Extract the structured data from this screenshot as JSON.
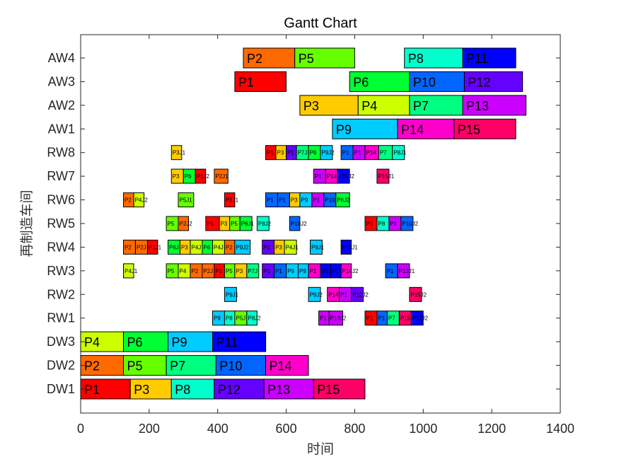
{
  "chart_data": {
    "type": "gantt",
    "title": "Gantt Chart",
    "xlabel": "时间",
    "ylabel": "再制造车间",
    "xlim": [
      0,
      1400
    ],
    "xticks": [
      0,
      200,
      400,
      600,
      800,
      1000,
      1200,
      1400
    ],
    "rows": [
      "DW1",
      "DW2",
      "DW3",
      "RW1",
      "RW2",
      "RW3",
      "RW4",
      "RW5",
      "RW6",
      "RW7",
      "RW8",
      "AW1",
      "AW2",
      "AW3",
      "AW4"
    ],
    "colors": {
      "P1": "#ff0000",
      "P2": "#ff6a00",
      "P3": "#ffcc00",
      "P4": "#ccff00",
      "P5": "#66ff00",
      "P6": "#00ff33",
      "P7": "#00ff80",
      "P8": "#00ffcc",
      "P9": "#00ccff",
      "P10": "#0066ff",
      "P11": "#0000ff",
      "P12": "#6600ff",
      "P13": "#cc00ff",
      "P14": "#ff00cc",
      "P15": "#ff0066"
    },
    "tasks": [
      {
        "row": "AW4",
        "job": "P2",
        "start": 475,
        "end": 625,
        "label": "P2"
      },
      {
        "row": "AW4",
        "job": "P5",
        "start": 625,
        "end": 800,
        "label": "P5"
      },
      {
        "row": "AW4",
        "job": "P8",
        "start": 945,
        "end": 1115,
        "label": "P8"
      },
      {
        "row": "AW4",
        "job": "P11",
        "start": 1115,
        "end": 1270,
        "label": "P11"
      },
      {
        "row": "AW3",
        "job": "P1",
        "start": 450,
        "end": 600,
        "label": "P1"
      },
      {
        "row": "AW3",
        "job": "P6",
        "start": 785,
        "end": 960,
        "label": "P6"
      },
      {
        "row": "AW3",
        "job": "P10",
        "start": 960,
        "end": 1120,
        "label": "P10"
      },
      {
        "row": "AW3",
        "job": "P12",
        "start": 1120,
        "end": 1290,
        "label": "P12"
      },
      {
        "row": "AW2",
        "job": "P3",
        "start": 640,
        "end": 810,
        "label": "P3"
      },
      {
        "row": "AW2",
        "job": "P4",
        "start": 810,
        "end": 960,
        "label": "P4"
      },
      {
        "row": "AW2",
        "job": "P7",
        "start": 960,
        "end": 1115,
        "label": "P7"
      },
      {
        "row": "AW2",
        "job": "P13",
        "start": 1115,
        "end": 1300,
        "label": "P13"
      },
      {
        "row": "AW1",
        "job": "P9",
        "start": 735,
        "end": 925,
        "label": "P9"
      },
      {
        "row": "AW1",
        "job": "P14",
        "start": 925,
        "end": 1090,
        "label": "P14"
      },
      {
        "row": "AW1",
        "job": "P15",
        "start": 1090,
        "end": 1270,
        "label": "P15"
      },
      {
        "row": "RW8",
        "job": "P3",
        "start": 265,
        "end": 295,
        "label": "P3J1"
      },
      {
        "row": "RW8",
        "job": "P1",
        "start": 540,
        "end": 570,
        "label": "P1"
      },
      {
        "row": "RW8",
        "job": "P3",
        "start": 570,
        "end": 600,
        "label": "P3"
      },
      {
        "row": "RW8",
        "job": "P12",
        "start": 600,
        "end": 630,
        "label": "P1"
      },
      {
        "row": "RW8",
        "job": "P7",
        "start": 630,
        "end": 665,
        "label": "P7J"
      },
      {
        "row": "RW8",
        "job": "P6",
        "start": 665,
        "end": 700,
        "label": "P6"
      },
      {
        "row": "RW8",
        "job": "P9",
        "start": 700,
        "end": 735,
        "label": "P9J2"
      },
      {
        "row": "RW8",
        "job": "P10",
        "start": 760,
        "end": 795,
        "label": "P1"
      },
      {
        "row": "RW8",
        "job": "P13",
        "start": 795,
        "end": 830,
        "label": "P1"
      },
      {
        "row": "RW8",
        "job": "P14",
        "start": 830,
        "end": 870,
        "label": "P14"
      },
      {
        "row": "RW8",
        "job": "P7",
        "start": 870,
        "end": 910,
        "label": "P7"
      },
      {
        "row": "RW8",
        "job": "P8",
        "start": 910,
        "end": 945,
        "label": "P8J1"
      },
      {
        "row": "RW7",
        "job": "P3",
        "start": 265,
        "end": 300,
        "label": "P3"
      },
      {
        "row": "RW7",
        "job": "P6",
        "start": 300,
        "end": 335,
        "label": "P6"
      },
      {
        "row": "RW7",
        "job": "P1",
        "start": 335,
        "end": 365,
        "label": "P1J2"
      },
      {
        "row": "RW7",
        "job": "P2",
        "start": 390,
        "end": 430,
        "label": "P2J1"
      },
      {
        "row": "RW7",
        "job": "P13",
        "start": 680,
        "end": 715,
        "label": "P1"
      },
      {
        "row": "RW7",
        "job": "P14",
        "start": 715,
        "end": 750,
        "label": "P14"
      },
      {
        "row": "RW7",
        "job": "P11",
        "start": 750,
        "end": 785,
        "label": "P11J2"
      },
      {
        "row": "RW7",
        "job": "P15",
        "start": 865,
        "end": 900,
        "label": "P15J1"
      },
      {
        "row": "RW6",
        "job": "P2",
        "start": 125,
        "end": 155,
        "label": "P2"
      },
      {
        "row": "RW6",
        "job": "P4",
        "start": 155,
        "end": 185,
        "label": "P4J2"
      },
      {
        "row": "RW6",
        "job": "P5",
        "start": 285,
        "end": 330,
        "label": "P5J1"
      },
      {
        "row": "RW6",
        "job": "P1",
        "start": 420,
        "end": 450,
        "label": "P1J1"
      },
      {
        "row": "RW6",
        "job": "P10",
        "start": 540,
        "end": 575,
        "label": "P1"
      },
      {
        "row": "RW6",
        "job": "P10",
        "start": 575,
        "end": 610,
        "label": "P1"
      },
      {
        "row": "RW6",
        "job": "P3",
        "start": 610,
        "end": 640,
        "label": "P3"
      },
      {
        "row": "RW6",
        "job": "P9",
        "start": 640,
        "end": 675,
        "label": "P9"
      },
      {
        "row": "RW6",
        "job": "P13",
        "start": 675,
        "end": 710,
        "label": "P1"
      },
      {
        "row": "RW6",
        "job": "P10",
        "start": 710,
        "end": 745,
        "label": "P10"
      },
      {
        "row": "RW6",
        "job": "P6",
        "start": 745,
        "end": 785,
        "label": "P6J2"
      },
      {
        "row": "RW5",
        "job": "P5",
        "start": 250,
        "end": 285,
        "label": "P5"
      },
      {
        "row": "RW5",
        "job": "P2",
        "start": 285,
        "end": 315,
        "label": "P2J2"
      },
      {
        "row": "RW5",
        "job": "P1",
        "start": 365,
        "end": 405,
        "label": "P1"
      },
      {
        "row": "RW5",
        "job": "P3",
        "start": 405,
        "end": 435,
        "label": "P3"
      },
      {
        "row": "RW5",
        "job": "P5",
        "start": 435,
        "end": 465,
        "label": "P5"
      },
      {
        "row": "RW5",
        "job": "P6",
        "start": 465,
        "end": 500,
        "label": "P6J1"
      },
      {
        "row": "RW5",
        "job": "P8",
        "start": 515,
        "end": 550,
        "label": "P8J2"
      },
      {
        "row": "RW5",
        "job": "P10",
        "start": 610,
        "end": 640,
        "label": "P10J2"
      },
      {
        "row": "RW5",
        "job": "P1",
        "start": 830,
        "end": 865,
        "label": "P1"
      },
      {
        "row": "RW5",
        "job": "P8",
        "start": 865,
        "end": 900,
        "label": "P8"
      },
      {
        "row": "RW5",
        "job": "P13",
        "start": 900,
        "end": 935,
        "label": "P1"
      },
      {
        "row": "RW5",
        "job": "P10",
        "start": 935,
        "end": 970,
        "label": "P10J2"
      },
      {
        "row": "RW4",
        "job": "P2",
        "start": 125,
        "end": 160,
        "label": "P2"
      },
      {
        "row": "RW4",
        "job": "P2",
        "start": 160,
        "end": 195,
        "label": "P2J"
      },
      {
        "row": "RW4",
        "job": "P1",
        "start": 195,
        "end": 225,
        "label": "P1J1"
      },
      {
        "row": "RW4",
        "job": "P6",
        "start": 255,
        "end": 290,
        "label": "P6J"
      },
      {
        "row": "RW4",
        "job": "P3",
        "start": 290,
        "end": 320,
        "label": "P3"
      },
      {
        "row": "RW4",
        "job": "P4",
        "start": 320,
        "end": 355,
        "label": "P4J"
      },
      {
        "row": "RW4",
        "job": "P6",
        "start": 355,
        "end": 385,
        "label": "P6"
      },
      {
        "row": "RW4",
        "job": "P4",
        "start": 385,
        "end": 420,
        "label": "P4J"
      },
      {
        "row": "RW4",
        "job": "P2",
        "start": 420,
        "end": 450,
        "label": "P2"
      },
      {
        "row": "RW4",
        "job": "P9",
        "start": 450,
        "end": 495,
        "label": "P9J2"
      },
      {
        "row": "RW4",
        "job": "P12",
        "start": 530,
        "end": 565,
        "label": "P1"
      },
      {
        "row": "RW4",
        "job": "P3",
        "start": 565,
        "end": 595,
        "label": "P3"
      },
      {
        "row": "RW4",
        "job": "P4",
        "start": 595,
        "end": 630,
        "label": "P4J1"
      },
      {
        "row": "RW4",
        "job": "P9",
        "start": 670,
        "end": 705,
        "label": "P9J1"
      },
      {
        "row": "RW4",
        "job": "P11",
        "start": 760,
        "end": 790,
        "label": "P11J1"
      },
      {
        "row": "RW3",
        "job": "P4",
        "start": 125,
        "end": 155,
        "label": "P4J1"
      },
      {
        "row": "RW3",
        "job": "P5",
        "start": 250,
        "end": 285,
        "label": "P5"
      },
      {
        "row": "RW3",
        "job": "P4",
        "start": 285,
        "end": 320,
        "label": "P4"
      },
      {
        "row": "RW3",
        "job": "P2",
        "start": 320,
        "end": 355,
        "label": "P2"
      },
      {
        "row": "RW3",
        "job": "P2",
        "start": 355,
        "end": 390,
        "label": "P2J"
      },
      {
        "row": "RW3",
        "job": "P1",
        "start": 390,
        "end": 420,
        "label": "P1"
      },
      {
        "row": "RW3",
        "job": "P5",
        "start": 420,
        "end": 450,
        "label": "P5"
      },
      {
        "row": "RW3",
        "job": "P3",
        "start": 450,
        "end": 485,
        "label": "P3"
      },
      {
        "row": "RW3",
        "job": "P7",
        "start": 485,
        "end": 520,
        "label": "P7J"
      },
      {
        "row": "RW3",
        "job": "P12",
        "start": 530,
        "end": 565,
        "label": "P1"
      },
      {
        "row": "RW3",
        "job": "P10",
        "start": 565,
        "end": 600,
        "label": "P1"
      },
      {
        "row": "RW3",
        "job": "P9",
        "start": 600,
        "end": 635,
        "label": "P9"
      },
      {
        "row": "RW3",
        "job": "P9",
        "start": 635,
        "end": 665,
        "label": "P9"
      },
      {
        "row": "RW3",
        "job": "P14",
        "start": 665,
        "end": 700,
        "label": "P1"
      },
      {
        "row": "RW3",
        "job": "P11",
        "start": 700,
        "end": 730,
        "label": "P1"
      },
      {
        "row": "RW3",
        "job": "P11",
        "start": 730,
        "end": 760,
        "label": "P1"
      },
      {
        "row": "RW3",
        "job": "P14",
        "start": 760,
        "end": 790,
        "label": "P14J2"
      },
      {
        "row": "RW3",
        "job": "P10",
        "start": 890,
        "end": 925,
        "label": "P1"
      },
      {
        "row": "RW3",
        "job": "P13",
        "start": 925,
        "end": 960,
        "label": "P13J1"
      },
      {
        "row": "RW2",
        "job": "P9",
        "start": 420,
        "end": 455,
        "label": "P9J1"
      },
      {
        "row": "RW2",
        "job": "P9",
        "start": 665,
        "end": 700,
        "label": "P9J2"
      },
      {
        "row": "RW2",
        "job": "P14",
        "start": 720,
        "end": 755,
        "label": "P14"
      },
      {
        "row": "RW2",
        "job": "P13",
        "start": 755,
        "end": 790,
        "label": "P1"
      },
      {
        "row": "RW2",
        "job": "P12",
        "start": 790,
        "end": 825,
        "label": "P12J2"
      },
      {
        "row": "RW2",
        "job": "P15",
        "start": 960,
        "end": 995,
        "label": "P15J2"
      },
      {
        "row": "RW1",
        "job": "P9",
        "start": 385,
        "end": 420,
        "label": "P9"
      },
      {
        "row": "RW1",
        "job": "P8",
        "start": 420,
        "end": 450,
        "label": "P8"
      },
      {
        "row": "RW1",
        "job": "P5",
        "start": 450,
        "end": 485,
        "label": "P5J"
      },
      {
        "row": "RW1",
        "job": "P8",
        "start": 485,
        "end": 515,
        "label": "P8J2"
      },
      {
        "row": "RW1",
        "job": "P13",
        "start": 695,
        "end": 725,
        "label": "P1"
      },
      {
        "row": "RW1",
        "job": "P13",
        "start": 725,
        "end": 765,
        "label": "P13J2"
      },
      {
        "row": "RW1",
        "job": "P1",
        "start": 830,
        "end": 865,
        "label": "P1"
      },
      {
        "row": "RW1",
        "job": "P10",
        "start": 865,
        "end": 895,
        "label": "P1"
      },
      {
        "row": "RW1",
        "job": "P7",
        "start": 895,
        "end": 930,
        "label": "P7"
      },
      {
        "row": "RW1",
        "job": "P15",
        "start": 930,
        "end": 965,
        "label": "P15"
      },
      {
        "row": "RW1",
        "job": "P11",
        "start": 965,
        "end": 1000,
        "label": "P11J2"
      },
      {
        "row": "DW3",
        "job": "P4",
        "start": 0,
        "end": 125,
        "label": "P4"
      },
      {
        "row": "DW3",
        "job": "P6",
        "start": 125,
        "end": 255,
        "label": "P6"
      },
      {
        "row": "DW3",
        "job": "P9",
        "start": 255,
        "end": 385,
        "label": "P9"
      },
      {
        "row": "DW3",
        "job": "P11",
        "start": 385,
        "end": 540,
        "label": "P11"
      },
      {
        "row": "DW2",
        "job": "P2",
        "start": 0,
        "end": 125,
        "label": "P2"
      },
      {
        "row": "DW2",
        "job": "P5",
        "start": 125,
        "end": 250,
        "label": "P5"
      },
      {
        "row": "DW2",
        "job": "P7",
        "start": 250,
        "end": 395,
        "label": "P7"
      },
      {
        "row": "DW2",
        "job": "P10",
        "start": 395,
        "end": 540,
        "label": "P10"
      },
      {
        "row": "DW2",
        "job": "P14",
        "start": 540,
        "end": 665,
        "label": "P14"
      },
      {
        "row": "DW1",
        "job": "P1",
        "start": 0,
        "end": 145,
        "label": "P1"
      },
      {
        "row": "DW1",
        "job": "P3",
        "start": 145,
        "end": 265,
        "label": "P3"
      },
      {
        "row": "DW1",
        "job": "P8",
        "start": 265,
        "end": 390,
        "label": "P8"
      },
      {
        "row": "DW1",
        "job": "P12",
        "start": 390,
        "end": 535,
        "label": "P12"
      },
      {
        "row": "DW1",
        "job": "P13",
        "start": 535,
        "end": 680,
        "label": "P13"
      },
      {
        "row": "DW1",
        "job": "P15",
        "start": 680,
        "end": 830,
        "label": "P15"
      }
    ]
  }
}
